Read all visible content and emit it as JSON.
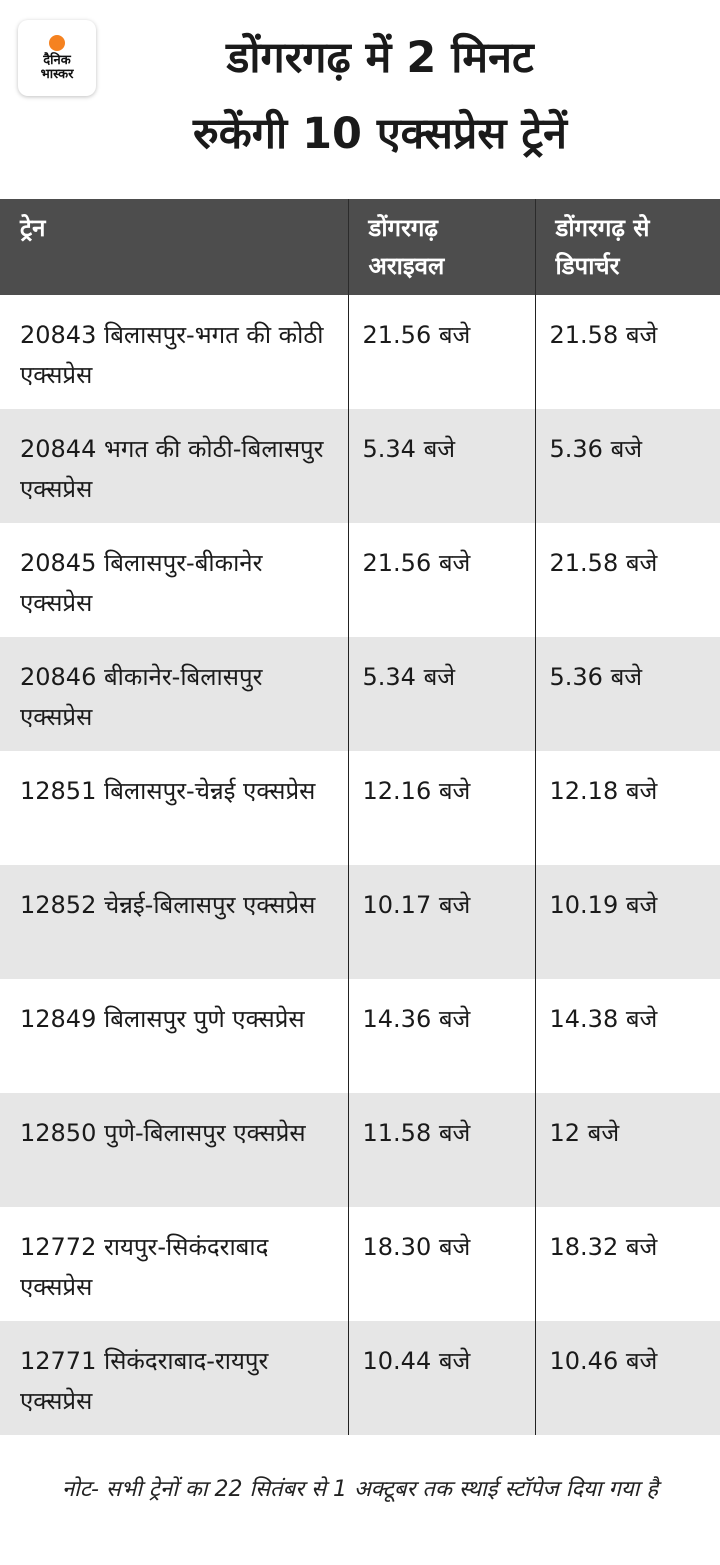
{
  "logo": {
    "line1": "दैनिक",
    "line2": "भास्कर",
    "accent_color": "#f58220"
  },
  "title": {
    "line1": "डोंगरगढ़ में 2 मिनट",
    "line2": "रुकेंगी 10 एक्सप्रेस ट्रेनें"
  },
  "table": {
    "headers": [
      "ट्रेन",
      "डोंगरगढ़ अराइवल",
      "डोंगरगढ़ से डिपार्चर"
    ],
    "header_bg": "#4d4d4d",
    "rows": [
      [
        "20843 बिलासपुर-भगत की कोठी एक्सप्रेस",
        "21.56 बजे",
        "21.58 बजे"
      ],
      [
        "20844 भगत की कोठी-बिलासपुर एक्सप्रेस",
        "5.34 बजे",
        "5.36 बजे"
      ],
      [
        "20845 बिलासपुर-बीकानेर एक्सप्रेस",
        "21.56 बजे",
        "21.58 बजे"
      ],
      [
        "20846 बीकानेर-बिलासपुर एक्सप्रेस",
        "5.34 बजे",
        "5.36 बजे"
      ],
      [
        "12851 बिलासपुर-चेन्नई एक्सप्रेस",
        "12.16 बजे",
        "12.18 बजे"
      ],
      [
        "12852 चेन्नई-बिलासपुर एक्सप्रेस",
        "10.17 बजे",
        "10.19 बजे"
      ],
      [
        "12849 बिलासपुर पुणे एक्सप्रेस",
        "14.36 बजे",
        "14.38 बजे"
      ],
      [
        "12850 पुणे-बिलासपुर एक्सप्रेस",
        "11.58 बजे",
        "12 बजे"
      ],
      [
        "12772 रायपुर-सिकंदराबाद एक्सप्रेस",
        "18.30 बजे",
        "18.32 बजे"
      ],
      [
        "12771 सिकंदराबाद-रायपुर एक्सप्रेस",
        "10.44 बजे",
        "10.46 बजे"
      ]
    ]
  },
  "note": "नोट- सभी ट्रेनों का 22 सितंबर से 1 अक्टूबर तक स्थाई स्टॉपेज दिया गया है"
}
